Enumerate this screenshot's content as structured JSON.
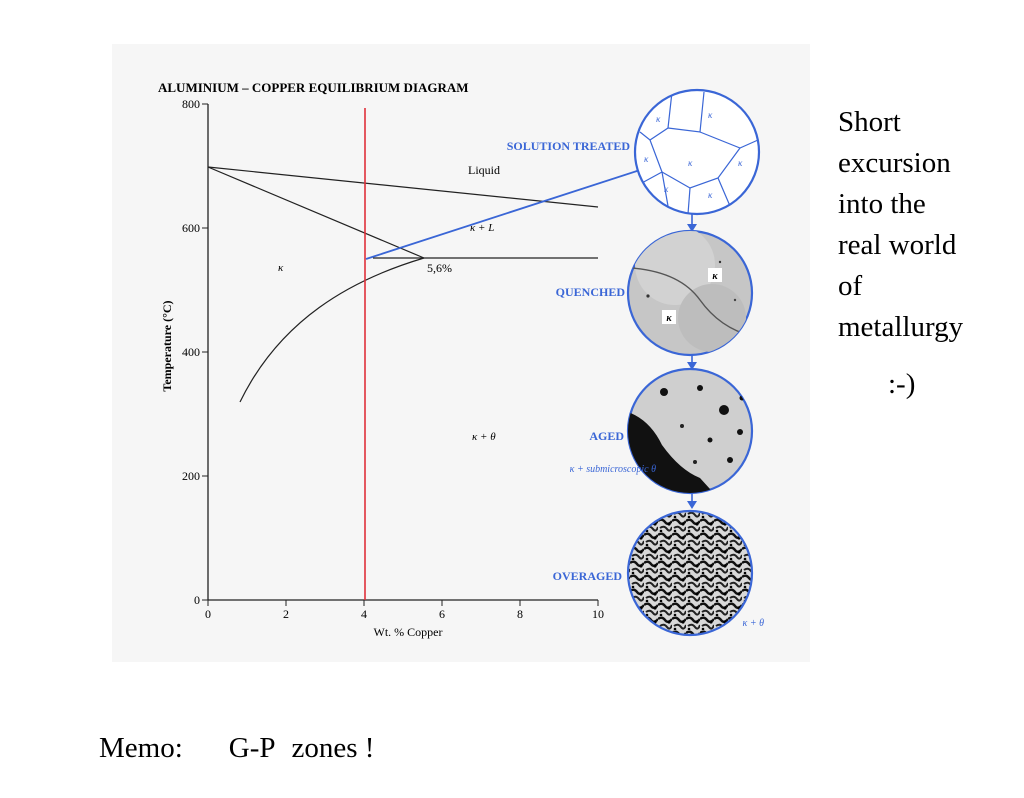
{
  "diagram": {
    "title": "ALUMINIUM – COPPER EQUILIBRIUM DIAGRAM",
    "x_axis": {
      "label": "Wt. % Copper",
      "ticks": [
        "0",
        "2",
        "4",
        "6",
        "8",
        "10"
      ]
    },
    "y_axis": {
      "label": "Temperature (°C)",
      "ticks": [
        "0",
        "200",
        "400",
        "600",
        "800"
      ]
    },
    "regions": {
      "liquid": "Liquid",
      "kappa_l": "κ + L",
      "kappa": "κ",
      "kappa_theta": "κ + θ",
      "solubility_point": "5,6%"
    },
    "stages": [
      {
        "label": "SOLUTION TREATED",
        "grain_labels": [
          "κ",
          "κ",
          "κ",
          "κ",
          "κ",
          "κ",
          "κ"
        ]
      },
      {
        "label": "QUENCHED",
        "grain_labels": [
          "κ",
          "κ"
        ]
      },
      {
        "label": "AGED",
        "sublabel": "κ + submicroscopic θ"
      },
      {
        "label": "OVERAGED",
        "sublabel": "κ + θ"
      }
    ],
    "colors": {
      "accent": "#3a66d6",
      "marker": "#e0303a",
      "panel": "#f6f6f6"
    }
  },
  "side_text": {
    "lines": [
      "Short",
      "excursion",
      "into the",
      "real world",
      "of",
      "metallurgy"
    ],
    "smiley": ":-)"
  },
  "memo": {
    "label": "Memo:",
    "term1": "G-P",
    "term2": "zones !"
  }
}
